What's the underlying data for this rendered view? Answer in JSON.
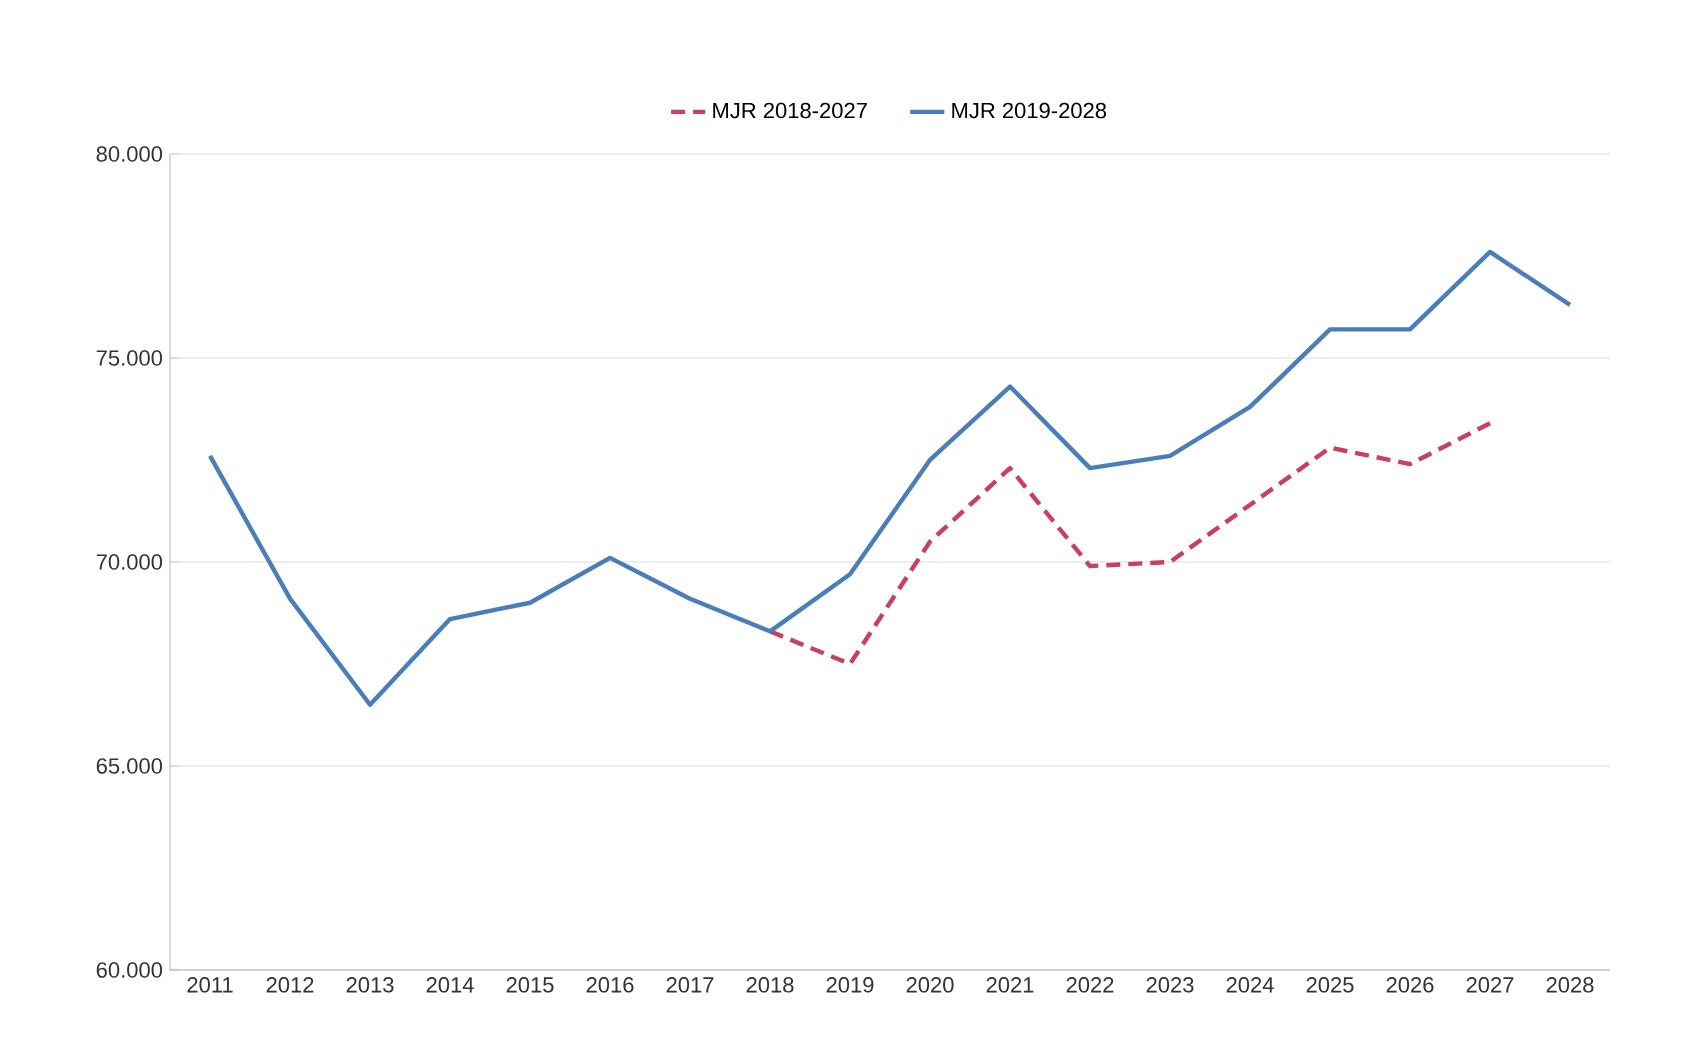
{
  "chart_data": {
    "type": "line",
    "categories": [
      "2011",
      "2012",
      "2013",
      "2014",
      "2015",
      "2016",
      "2017",
      "2018",
      "2019",
      "2020",
      "2021",
      "2022",
      "2023",
      "2024",
      "2025",
      "2026",
      "2027",
      "2028"
    ],
    "series": [
      {
        "name": "MJR 2018-2027",
        "color": "#c8405a",
        "line_style": "dashed",
        "values": [
          null,
          null,
          null,
          null,
          null,
          null,
          null,
          68300,
          67500,
          70500,
          72300,
          69900,
          70000,
          71400,
          72800,
          72400,
          73400,
          null
        ]
      },
      {
        "name": "MJR 2019-2028",
        "color": "#4a7ebb",
        "line_style": "solid",
        "values": [
          72600,
          69100,
          66500,
          68600,
          69000,
          70100,
          69100,
          68300,
          69700,
          72500,
          74300,
          72300,
          72600,
          73800,
          75700,
          75700,
          77600,
          76300
        ]
      }
    ],
    "ylim": [
      60000,
      80000
    ],
    "yticks": [
      {
        "value": 60000,
        "label": "60.000"
      },
      {
        "value": 65000,
        "label": "65.000"
      },
      {
        "value": 70000,
        "label": "70.000"
      },
      {
        "value": 75000,
        "label": "75.000"
      },
      {
        "value": 80000,
        "label": "80.000"
      }
    ],
    "grid": "y",
    "legend": "top"
  }
}
